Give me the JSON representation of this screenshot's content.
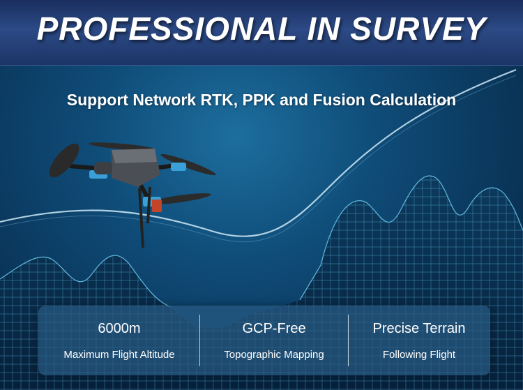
{
  "banner": {
    "title": "PROFESSIONAL IN SURVEY"
  },
  "subtitle": "Support Network RTK, PPK and Fusion Calculation",
  "features": [
    {
      "value": "6000m",
      "label": "Maximum Flight Altitude"
    },
    {
      "value": "GCP-Free",
      "label": "Topographic Mapping"
    },
    {
      "value": "Precise Terrain",
      "label": "Following Flight"
    }
  ],
  "colors": {
    "banner": "#2c4a86",
    "background": "#0f4c78",
    "panel": "#285a82",
    "drone_accent": "#3aa0d8",
    "text": "#ffffff"
  }
}
